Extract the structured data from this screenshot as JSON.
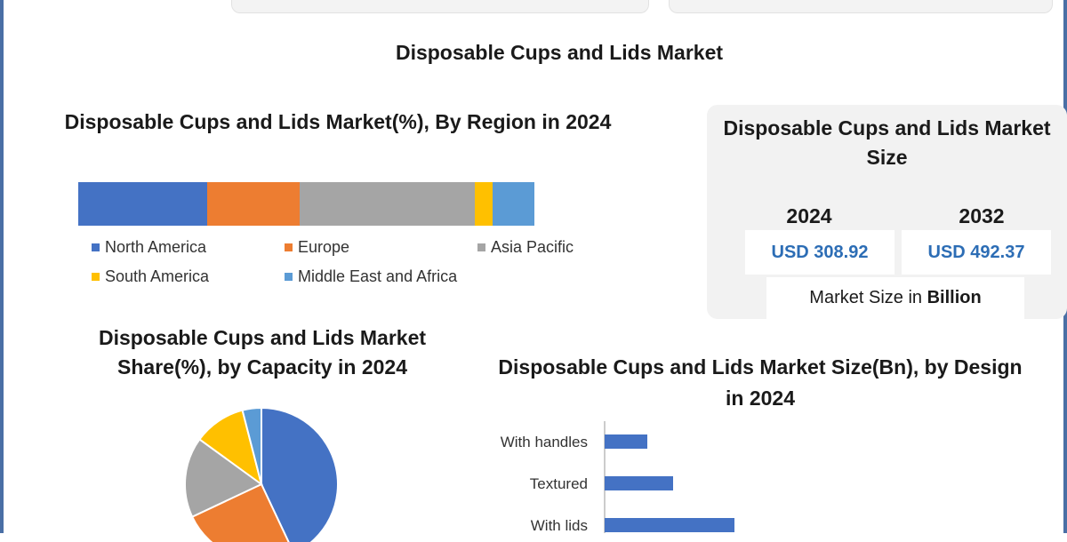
{
  "main_title": "Disposable Cups and Lids Market",
  "chart_data": [
    {
      "type": "bar",
      "orientation": "horizontal-stacked",
      "title": "Disposable Cups and Lids Market(%), By Region in 2024",
      "series": [
        {
          "name": "North America",
          "values": [
            28
          ],
          "color": "#4472c4"
        },
        {
          "name": "Europe",
          "values": [
            20
          ],
          "color": "#ed7d31"
        },
        {
          "name": "Asia Pacific",
          "values": [
            38
          ],
          "color": "#a5a5a5"
        },
        {
          "name": "South America",
          "values": [
            4
          ],
          "color": "#ffc000"
        },
        {
          "name": "Middle East and Africa",
          "values": [
            9
          ],
          "color": "#5b9bd5"
        }
      ],
      "legend_position": "bottom",
      "grid": false
    },
    {
      "type": "pie",
      "title": "Disposable Cups and Lids Market Share(%), by Capacity in 2024",
      "slices": [
        {
          "value": 43,
          "color": "#4472c4"
        },
        {
          "value": 25,
          "color": "#ed7d31"
        },
        {
          "value": 17,
          "color": "#a5a5a5"
        },
        {
          "value": 11,
          "color": "#ffc000"
        },
        {
          "value": 4,
          "color": "#5b9bd5"
        }
      ]
    },
    {
      "type": "bar",
      "orientation": "horizontal",
      "title": "Disposable Cups and Lids Market Size(Bn), by Design in 2024",
      "categories": [
        "With handles",
        "Textured",
        "With lids"
      ],
      "values": [
        48,
        77,
        146
      ],
      "color": "#4472c4",
      "grid": false
    }
  ],
  "size_panel": {
    "title": "Disposable Cups and Lids Market Size",
    "year1": "2024",
    "value1": "USD 308.92",
    "year2": "2032",
    "value2": "USD 492.37",
    "unit_prefix": "Market Size in",
    "unit_bold": "Billion"
  }
}
